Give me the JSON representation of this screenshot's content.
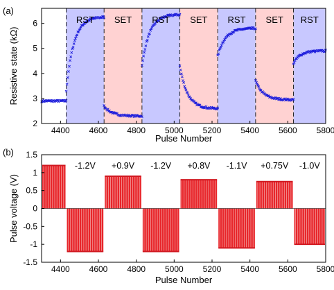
{
  "chart_data": [
    {
      "panel_label": "(a)",
      "type": "scatter",
      "xlabel": "Pulse Number",
      "ylabel": "Resistive state (kΩ)",
      "xlim": [
        4300,
        5800
      ],
      "ylim": [
        2,
        6.6
      ],
      "xticks": [
        4400,
        4600,
        4800,
        5000,
        5200,
        5400,
        5600,
        5800
      ],
      "yticks": [
        2,
        3,
        4,
        5,
        6
      ],
      "grid": false,
      "marker": "x",
      "series_color": "#1f1fdc",
      "regions": [
        {
          "label": "",
          "start": 4300,
          "end": 4430,
          "color": "#ffffff"
        },
        {
          "label": "RST",
          "start": 4430,
          "end": 4630,
          "color": "#c8c8ff"
        },
        {
          "label": "SET",
          "start": 4630,
          "end": 4830,
          "color": "#ffd2d2"
        },
        {
          "label": "RST",
          "start": 4830,
          "end": 5030,
          "color": "#c8c8ff"
        },
        {
          "label": "SET",
          "start": 5030,
          "end": 5230,
          "color": "#ffd2d2"
        },
        {
          "label": "RST",
          "start": 5230,
          "end": 5430,
          "color": "#c8c8ff"
        },
        {
          "label": "SET",
          "start": 5430,
          "end": 5630,
          "color": "#ffd2d2"
        },
        {
          "label": "RST",
          "start": 5630,
          "end": 5800,
          "color": "#c8c8ff"
        }
      ],
      "segments": [
        {
          "start": 4300,
          "end": 4430,
          "from": 2.9,
          "to": 2.9,
          "shape": "flat"
        },
        {
          "start": 4430,
          "end": 4630,
          "from": 3.3,
          "to": 6.25,
          "shape": "rise"
        },
        {
          "start": 4630,
          "end": 4830,
          "from": 2.7,
          "to": 2.3,
          "shape": "fall"
        },
        {
          "start": 4830,
          "end": 5030,
          "from": 4.3,
          "to": 6.35,
          "shape": "rise"
        },
        {
          "start": 5030,
          "end": 5230,
          "from": 4.3,
          "to": 2.6,
          "shape": "fall"
        },
        {
          "start": 5230,
          "end": 5430,
          "from": 4.7,
          "to": 5.8,
          "shape": "rise"
        },
        {
          "start": 5430,
          "end": 5630,
          "from": 3.7,
          "to": 2.95,
          "shape": "fall"
        },
        {
          "start": 5630,
          "end": 5800,
          "from": 4.4,
          "to": 4.9,
          "shape": "rise"
        }
      ]
    },
    {
      "panel_label": "(b)",
      "type": "bar",
      "xlabel": "Pulse Number",
      "ylabel": "Pulse voltage (V)",
      "xlim": [
        4300,
        5800
      ],
      "ylim": [
        -1.5,
        1.5
      ],
      "xticks": [
        4400,
        4600,
        4800,
        5000,
        5200,
        5400,
        5600,
        5800
      ],
      "yticks": [
        -1.5,
        -1,
        -0.5,
        0,
        0.5,
        1,
        1.5
      ],
      "grid": false,
      "series_color": "#e8262b",
      "pulses": [
        {
          "start": 4300,
          "end": 4430,
          "value": 1.2,
          "label": ""
        },
        {
          "start": 4430,
          "end": 4630,
          "value": -1.2,
          "label": "-1.2V"
        },
        {
          "start": 4630,
          "end": 4830,
          "value": 0.9,
          "label": "+0.9V"
        },
        {
          "start": 4830,
          "end": 5030,
          "value": -1.2,
          "label": "-1.2V"
        },
        {
          "start": 5030,
          "end": 5230,
          "value": 0.8,
          "label": "+0.8V"
        },
        {
          "start": 5230,
          "end": 5430,
          "value": -1.1,
          "label": "-1.1V"
        },
        {
          "start": 5430,
          "end": 5630,
          "value": 0.75,
          "label": "+0.75V"
        },
        {
          "start": 5630,
          "end": 5800,
          "value": -1.0,
          "label": "-1.0V"
        }
      ]
    }
  ]
}
